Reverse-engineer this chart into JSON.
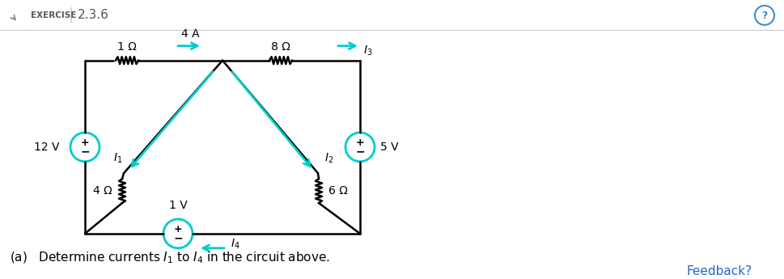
{
  "bg_color": "#ffffff",
  "header_text": "EXERCISE",
  "header_number": "2.3.6",
  "header_line_color": "#cccccc",
  "header_text_color": "#555555",
  "circuit_color": "#000000",
  "arrow_color": "#00cccc",
  "circle_color": "#00cccc",
  "question_icon_color": "#4488cc",
  "feedback_color": "#2266cc",
  "label_fontsize": 10,
  "annotation_text": "(a)   Determine currents $I_1$ to $I_4$ in the circuit above.",
  "annotation_fontsize": 11,
  "feedback_text": "Feedback?",
  "feedback_fontsize": 11
}
